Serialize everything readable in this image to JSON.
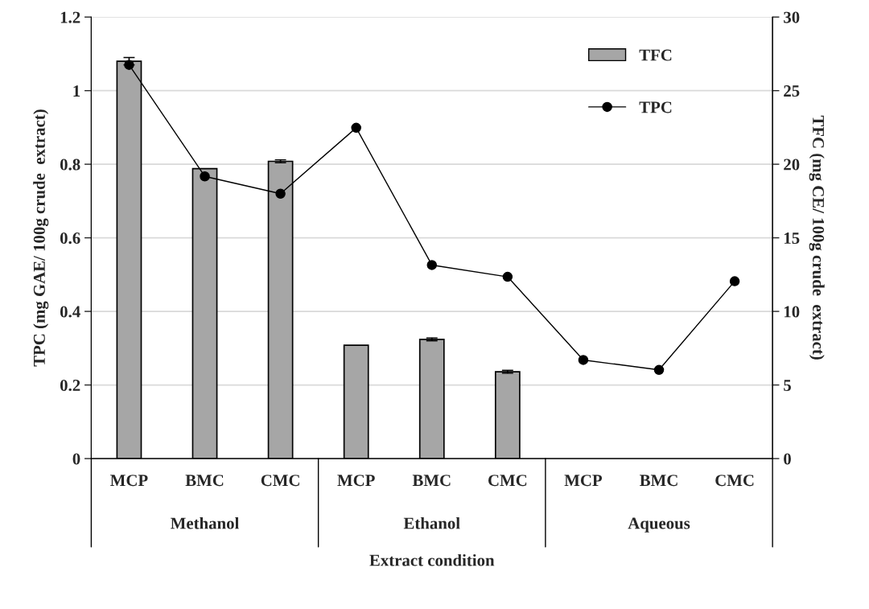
{
  "chart_data": {
    "type": "bar",
    "categories": [
      "MCP",
      "BMC",
      "CMC",
      "MCP",
      "BMC",
      "CMC",
      "MCP",
      "BMC",
      "CMC"
    ],
    "series": [
      {
        "name": "TFC",
        "axis": "y2",
        "color": "#a6a6a6",
        "values": [
          27.0,
          19.7,
          20.2,
          7.7,
          8.1,
          5.9,
          null,
          null,
          null
        ],
        "errors": [
          0.25,
          null,
          0.1,
          null,
          0.1,
          0.1,
          null,
          null,
          null
        ]
      },
      {
        "name": "TPC",
        "type": "line",
        "axis": "y",
        "color": "#000000",
        "marker": "circle",
        "line_style": "solid",
        "values": [
          1.07,
          0.767,
          0.72,
          0.899,
          0.526,
          0.494,
          0.268,
          0.241,
          0.482
        ]
      }
    ],
    "xlabel": "Extract condition",
    "ylabel": "TPC (mg GAE/ 100g crude  extract)",
    "y2label": "TFC (mg CE/ 100g crude  extract)",
    "ylim": [
      0,
      1.2
    ],
    "yticks": [
      0,
      0.2,
      0.4,
      0.6,
      0.8,
      1,
      1.2
    ],
    "y2lim": [
      0,
      30
    ],
    "y2ticks": [
      0,
      5,
      10,
      15,
      20,
      25,
      30
    ],
    "annotations": [
      "Methanol",
      "Ethanol",
      "Aqueous"
    ],
    "grid": "y",
    "legend": "top right"
  }
}
